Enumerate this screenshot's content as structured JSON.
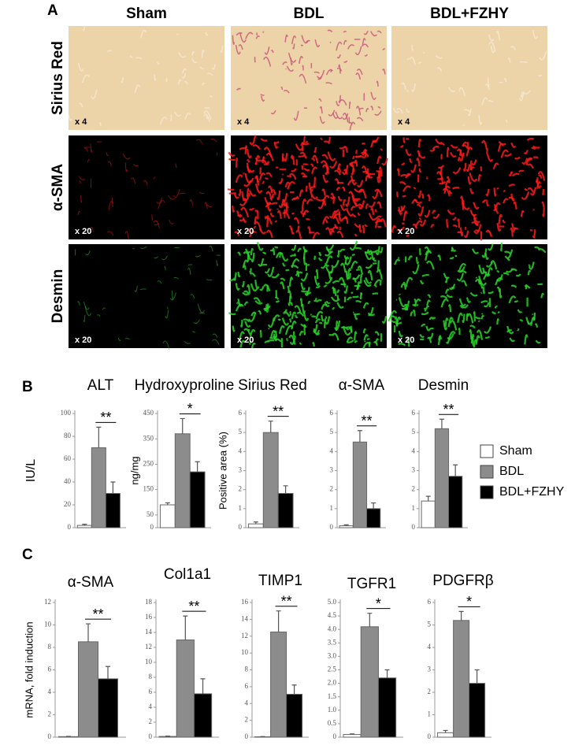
{
  "panels": {
    "A": {
      "label": "A",
      "columns": [
        "Sham",
        "BDL",
        "BDL+FZHY"
      ],
      "rows": [
        {
          "label": "Sirius Red",
          "magnification": "x 4"
        },
        {
          "label": "α-SMA",
          "magnification": "x 20"
        },
        {
          "label": "Desmin",
          "magnification": "x 20"
        }
      ]
    },
    "B": {
      "label": "B",
      "legend": [
        {
          "name": "Sham",
          "color": "#ffffff"
        },
        {
          "name": "BDL",
          "color": "#8c8c8c"
        },
        {
          "name": "BDL+FZHY",
          "color": "#000000"
        }
      ]
    },
    "C": {
      "label": "C"
    }
  },
  "chart_data": [
    {
      "type": "bar",
      "title": "ALT",
      "ylabel": "IU/L",
      "values": [
        2,
        70,
        30
      ],
      "errors": [
        1,
        18,
        10
      ],
      "colors": [
        "#ffffff",
        "#8c8c8c",
        "#000000"
      ],
      "ylim": [
        0,
        100
      ],
      "yticks": [
        0,
        20,
        40,
        60,
        80,
        100
      ],
      "annotation": "**"
    },
    {
      "type": "bar",
      "title": "Hydroxyproline",
      "ylabel": "ng/mg",
      "values": [
        90,
        370,
        220
      ],
      "errors": [
        8,
        60,
        40
      ],
      "colors": [
        "#ffffff",
        "#8c8c8c",
        "#000000"
      ],
      "ylim": [
        0,
        450
      ],
      "yticks": [
        0,
        50,
        150,
        250,
        350,
        450
      ],
      "annotation": "*"
    },
    {
      "type": "bar",
      "title": "Sirius Red",
      "ylabel": "Positive area (%)",
      "values": [
        0.2,
        5.0,
        1.8
      ],
      "errors": [
        0.1,
        0.6,
        0.4
      ],
      "colors": [
        "#ffffff",
        "#8c8c8c",
        "#000000"
      ],
      "ylim": [
        0,
        6
      ],
      "yticks": [
        0,
        1,
        2,
        3,
        4,
        5,
        6
      ],
      "annotation": "**"
    },
    {
      "type": "bar",
      "title": "α-SMA",
      "values": [
        0.1,
        4.5,
        1.0
      ],
      "errors": [
        0.05,
        0.6,
        0.3
      ],
      "colors": [
        "#ffffff",
        "#8c8c8c",
        "#000000"
      ],
      "ylim": [
        0,
        6
      ],
      "yticks": [
        0,
        1,
        2,
        3,
        4,
        5,
        6
      ],
      "annotation": "**"
    },
    {
      "type": "bar",
      "title": "Desmin",
      "values": [
        1.4,
        5.2,
        2.7
      ],
      "errors": [
        0.25,
        0.5,
        0.6
      ],
      "colors": [
        "#ffffff",
        "#8c8c8c",
        "#000000"
      ],
      "ylim": [
        0,
        6
      ],
      "yticks": [
        0,
        1,
        2,
        3,
        4,
        5,
        6
      ],
      "annotation": "**"
    },
    {
      "type": "bar",
      "title": "α-SMA",
      "ylabel": "mRNA, fold induction",
      "values": [
        0.05,
        8.5,
        5.2
      ],
      "errors": [
        0.02,
        1.6,
        1.1
      ],
      "colors": [
        "#ffffff",
        "#8c8c8c",
        "#000000"
      ],
      "ylim": [
        0,
        12
      ],
      "yticks": [
        0,
        2,
        4,
        6,
        8,
        10,
        12
      ],
      "annotation": "**"
    },
    {
      "type": "bar",
      "title": "Col1a1",
      "values": [
        0.1,
        13,
        5.8
      ],
      "errors": [
        0.05,
        3.2,
        2
      ],
      "colors": [
        "#ffffff",
        "#8c8c8c",
        "#000000"
      ],
      "ylim": [
        0,
        18
      ],
      "yticks": [
        0,
        2,
        4,
        6,
        8,
        10,
        12,
        14,
        16,
        18
      ],
      "annotation": "**"
    },
    {
      "type": "bar",
      "title": "TIMP1",
      "values": [
        0.05,
        12.5,
        5.1
      ],
      "errors": [
        0.02,
        2.5,
        1.1
      ],
      "colors": [
        "#ffffff",
        "#8c8c8c",
        "#000000"
      ],
      "ylim": [
        0,
        16
      ],
      "yticks": [
        0,
        2,
        4,
        6,
        8,
        10,
        12,
        14,
        16
      ],
      "annotation": "**"
    },
    {
      "type": "bar",
      "title": "TGFR1",
      "values": [
        0.1,
        4.1,
        2.2
      ],
      "errors": [
        0.02,
        0.5,
        0.3
      ],
      "colors": [
        "#ffffff",
        "#8c8c8c",
        "#000000"
      ],
      "ylim": [
        0,
        5
      ],
      "yticks": [
        0,
        0.5,
        {
          "value": 1,
          "label": "1.0"
        },
        1.5,
        {
          "value": 2,
          "label": "2.0"
        },
        2.5,
        {
          "value": 3,
          "label": "3.0"
        },
        3.5,
        {
          "value": 4,
          "label": "4.0"
        },
        4.5,
        {
          "value": 5,
          "label": "5.0"
        }
      ],
      "annotation": "*"
    },
    {
      "type": "bar",
      "title": "PDGFRβ",
      "values": [
        0.2,
        5.2,
        2.4
      ],
      "errors": [
        0.1,
        0.4,
        0.6
      ],
      "colors": [
        "#ffffff",
        "#8c8c8c",
        "#000000"
      ],
      "ylim": [
        0,
        6
      ],
      "yticks": [
        0,
        1,
        2,
        3,
        4,
        5,
        6
      ],
      "annotation": "*"
    }
  ]
}
